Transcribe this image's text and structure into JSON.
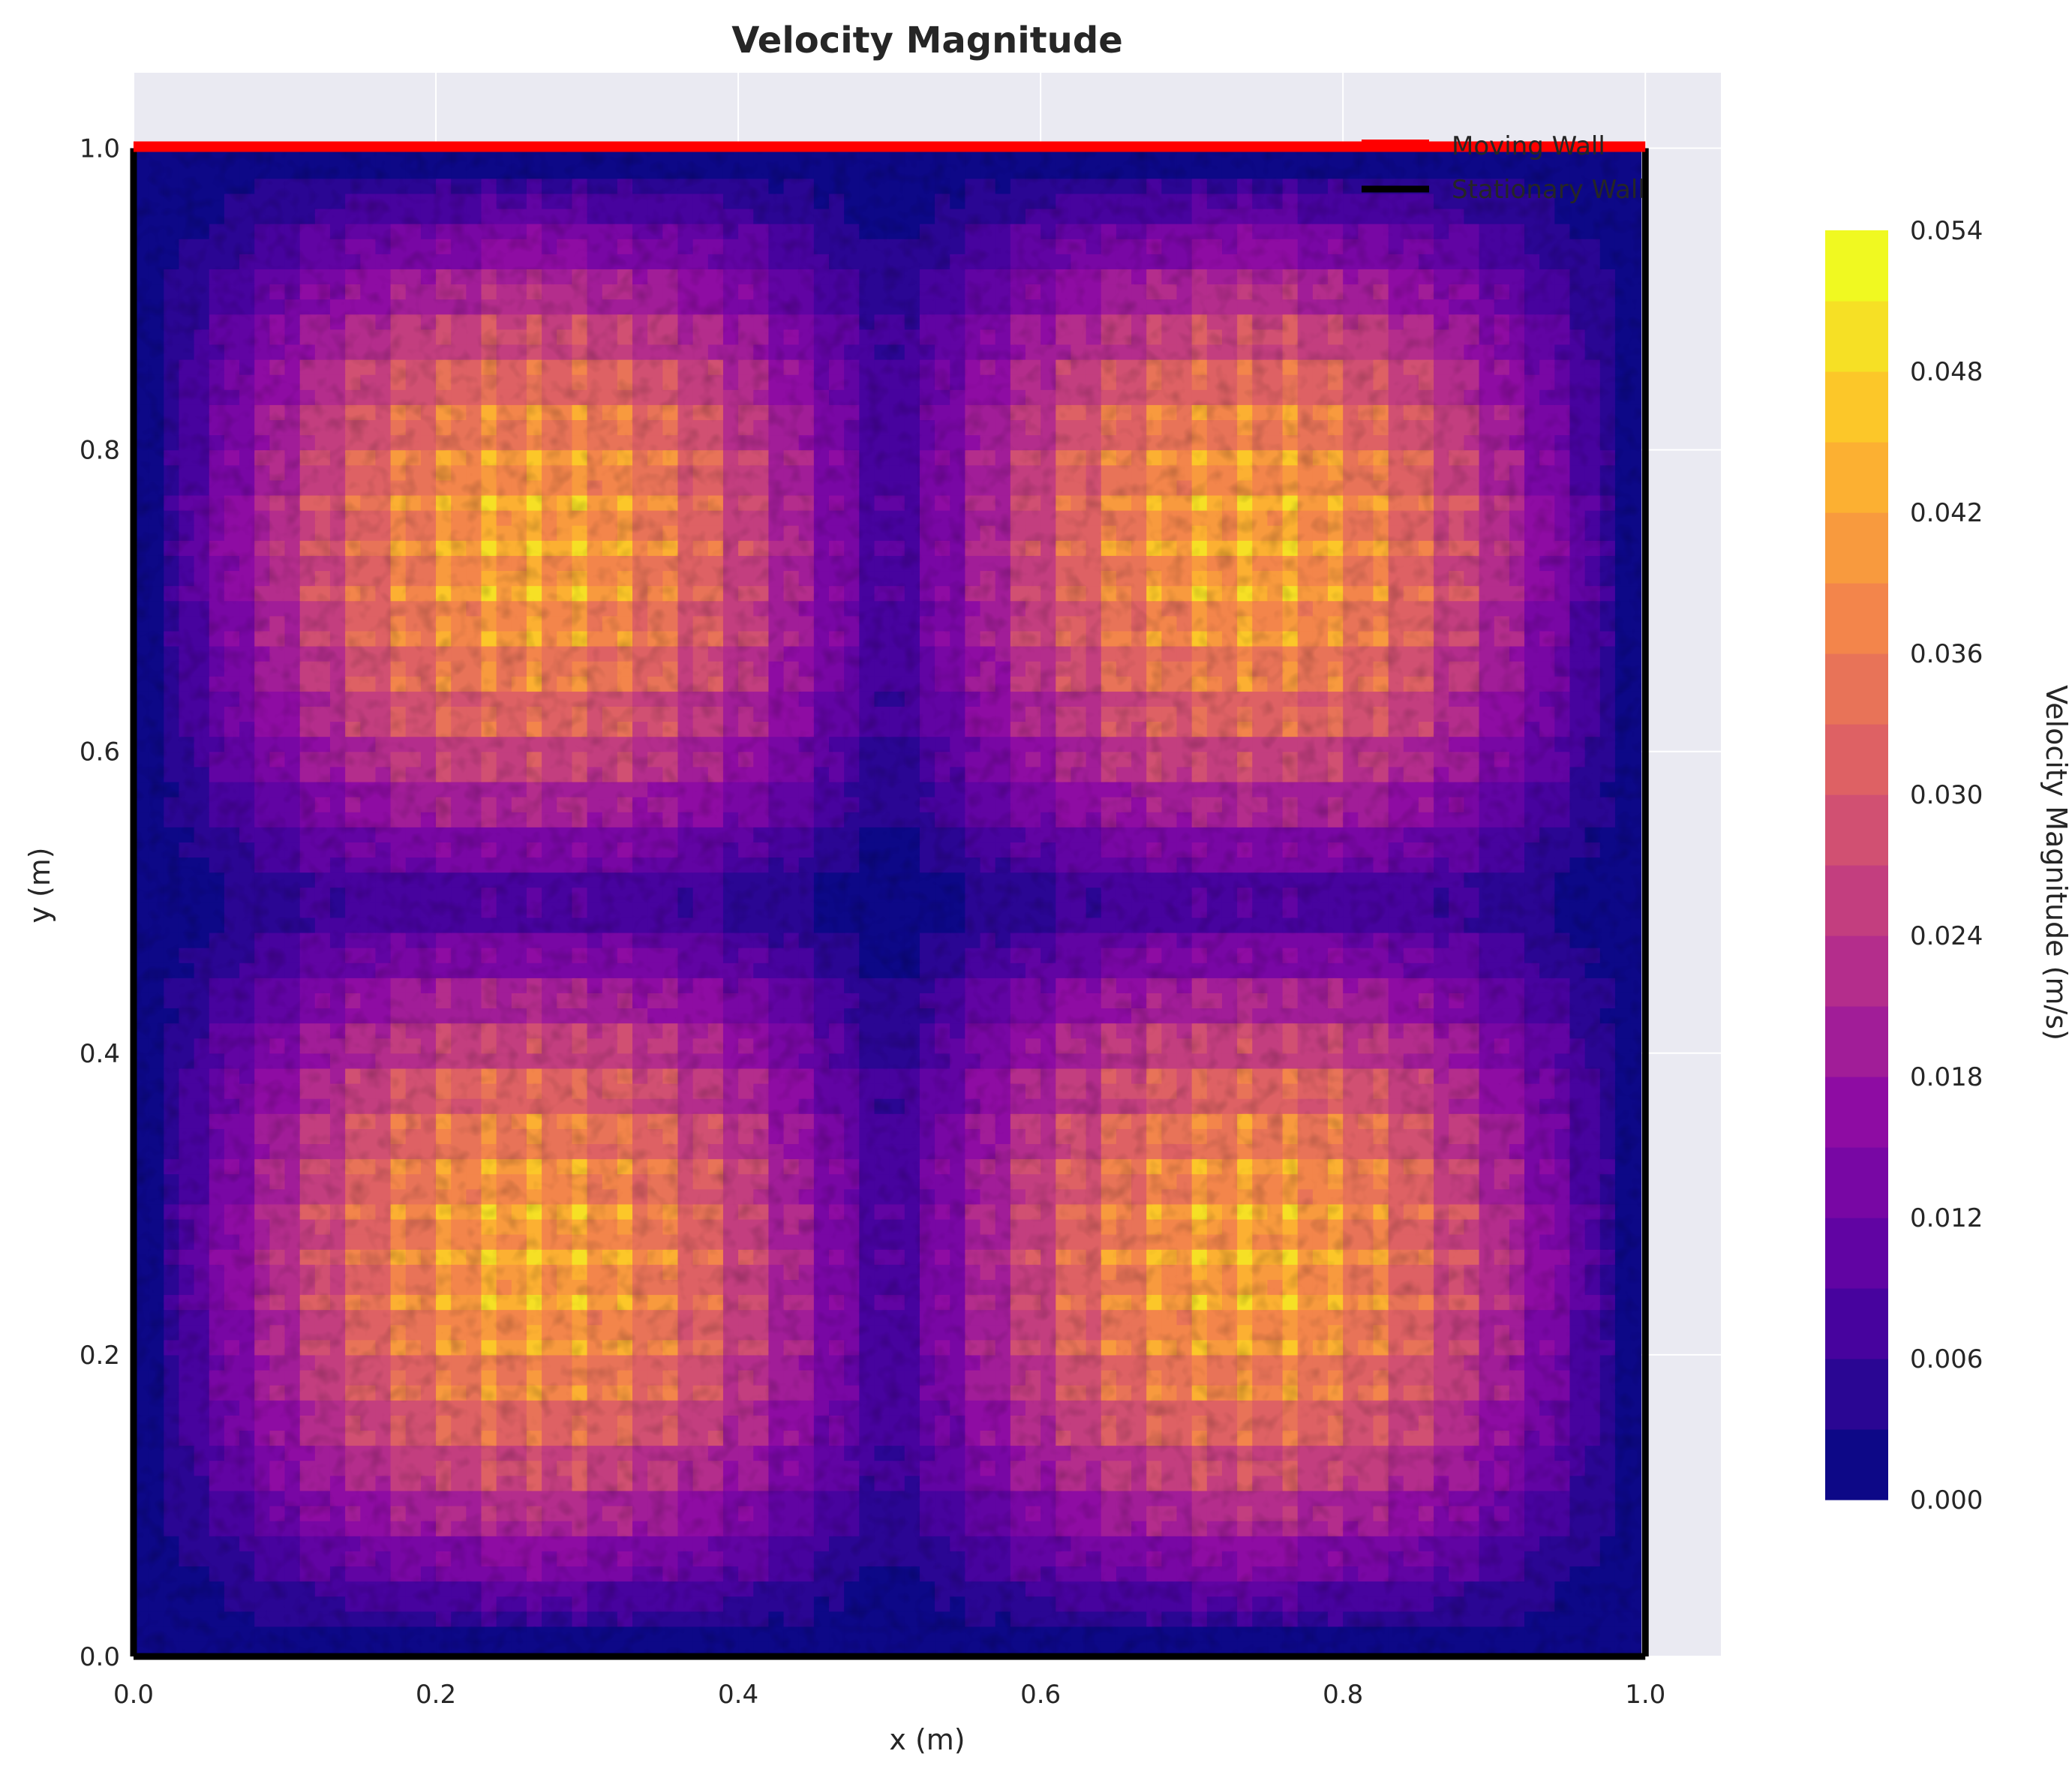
{
  "chart_data": {
    "type": "heatmap",
    "title": "Velocity Magnitude",
    "xlabel": "x (m)",
    "ylabel": "y (m)",
    "xlim": [
      0.0,
      1.05
    ],
    "ylim": [
      0.0,
      1.05
    ],
    "x_ticks": [
      "0.0",
      "0.2",
      "0.4",
      "0.6",
      "0.8",
      "1.0"
    ],
    "y_ticks": [
      "0.0",
      "0.2",
      "0.4",
      "0.6",
      "0.8",
      "1.0"
    ],
    "grid": true,
    "colormap": "plasma",
    "colorbar": {
      "label": "Velocity Magnitude (m/s)",
      "min": 0.0,
      "max": 0.054,
      "levels": 18,
      "ticks": [
        "0.000",
        "0.006",
        "0.012",
        "0.018",
        "0.024",
        "0.030",
        "0.036",
        "0.042",
        "0.048",
        "0.054"
      ]
    },
    "legend": {
      "placement": "top-right",
      "entries": [
        {
          "label": "Moving Wall",
          "color": "#ff0000"
        },
        {
          "label": "Stationary Wall",
          "color": "#000000"
        }
      ]
    },
    "walls": {
      "moving": {
        "x": [
          0.0,
          1.0
        ],
        "y": [
          1.0,
          1.0
        ],
        "color": "#ff0000"
      },
      "stationary": [
        {
          "x": [
            0.0,
            0.0
          ],
          "y": [
            0.0,
            1.0
          ]
        },
        {
          "x": [
            0.0,
            1.0
          ],
          "y": [
            0.0,
            0.0
          ]
        },
        {
          "x": [
            1.0,
            1.0
          ],
          "y": [
            0.0,
            1.0
          ]
        }
      ]
    }
  }
}
